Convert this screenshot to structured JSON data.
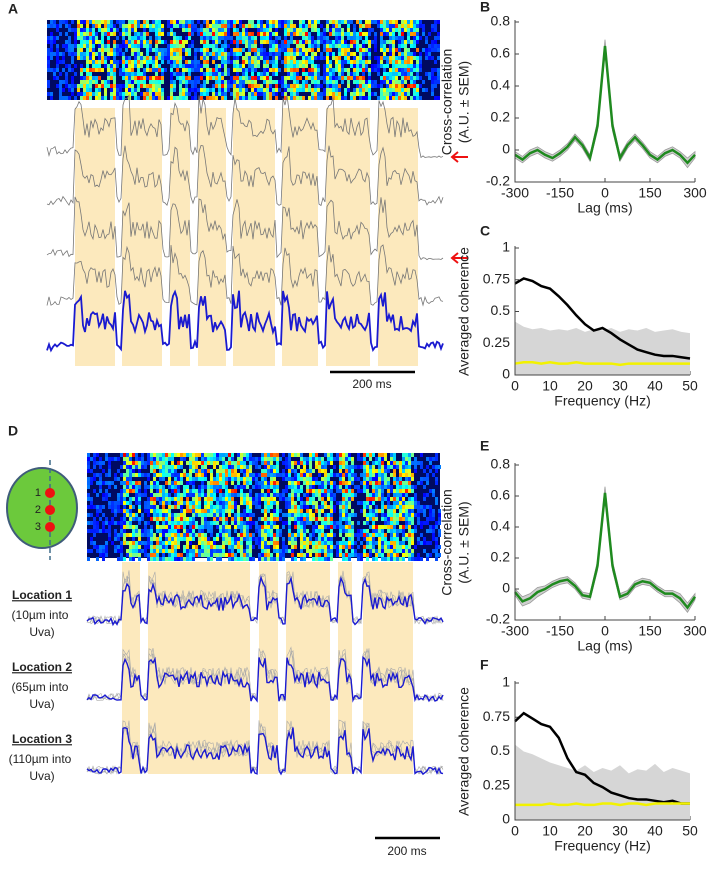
{
  "figure": {
    "panel_A": {
      "letter": "A",
      "scale_bar": "200 ms"
    },
    "panel_D": {
      "letter": "D",
      "scale_bar": "200 ms",
      "electrode_labels": [
        "1",
        "2",
        "3"
      ],
      "locations": [
        {
          "title": "Location 1",
          "detail": [
            "(10µm into",
            "Uva)"
          ]
        },
        {
          "title": "Location 2",
          "detail": [
            "(65µm into",
            "Uva)"
          ]
        },
        {
          "title": "Location 3",
          "detail": [
            "(110µm into",
            "Uva)"
          ]
        }
      ]
    }
  },
  "chart_data": [
    {
      "type": "line",
      "letter": "B",
      "ylabel": [
        "Cross-correlation",
        "(A.U. ± SEM)"
      ],
      "xlabel": "Lag (ms)",
      "x": [
        -300,
        -275,
        -250,
        -225,
        -200,
        -175,
        -150,
        -125,
        -100,
        -75,
        -50,
        -25,
        0,
        25,
        50,
        75,
        100,
        125,
        150,
        175,
        200,
        225,
        250,
        275,
        300
      ],
      "xlim": [
        -300,
        300
      ],
      "xticks": [
        -300,
        -150,
        0,
        150,
        300
      ],
      "ylim": [
        -0.2,
        0.8
      ],
      "yticks": [
        -0.2,
        0,
        0.2,
        0.4,
        0.6,
        0.8
      ],
      "series": [
        {
          "color": "#1f8a1f",
          "sem_color": "#9a9a9a",
          "values": [
            -0.03,
            -0.06,
            -0.02,
            0.0,
            -0.03,
            -0.05,
            -0.02,
            0.02,
            0.08,
            0.03,
            -0.05,
            0.15,
            0.65,
            0.15,
            -0.05,
            0.03,
            0.08,
            0.03,
            -0.03,
            -0.06,
            -0.02,
            0.0,
            -0.03,
            -0.08,
            -0.03
          ],
          "sem": [
            0.02,
            0.02,
            0.02,
            0.02,
            0.02,
            0.02,
            0.02,
            0.02,
            0.02,
            0.02,
            0.02,
            0.03,
            0.04,
            0.03,
            0.02,
            0.02,
            0.02,
            0.02,
            0.02,
            0.02,
            0.02,
            0.02,
            0.02,
            0.03,
            0.02
          ]
        }
      ]
    },
    {
      "type": "line",
      "letter": "C",
      "ylabel": [
        "Averaged coherence"
      ],
      "xlabel": "Frequency (Hz)",
      "x": [
        0,
        2.5,
        5,
        7.5,
        10,
        12.5,
        15,
        17.5,
        20,
        22.5,
        25,
        27.5,
        30,
        32.5,
        35,
        37.5,
        40,
        42.5,
        45,
        47.5,
        50
      ],
      "xlim": [
        0,
        50
      ],
      "xticks": [
        0,
        10,
        20,
        30,
        40,
        50
      ],
      "ylim": [
        0,
        1
      ],
      "yticks": [
        0,
        0.25,
        0.5,
        0.75,
        1
      ],
      "series": [
        {
          "kind": "area",
          "color": "#d6d6d6",
          "values": [
            0.42,
            0.38,
            0.36,
            0.37,
            0.35,
            0.36,
            0.35,
            0.37,
            0.34,
            0.36,
            0.35,
            0.37,
            0.34,
            0.36,
            0.35,
            0.37,
            0.34,
            0.35,
            0.36,
            0.34,
            0.33
          ]
        },
        {
          "color": "#000000",
          "values": [
            0.72,
            0.76,
            0.74,
            0.7,
            0.68,
            0.62,
            0.55,
            0.47,
            0.4,
            0.35,
            0.37,
            0.33,
            0.28,
            0.24,
            0.2,
            0.18,
            0.16,
            0.15,
            0.15,
            0.14,
            0.13
          ]
        },
        {
          "color": "#f2f200",
          "values": [
            0.09,
            0.1,
            0.1,
            0.09,
            0.1,
            0.09,
            0.09,
            0.1,
            0.09,
            0.09,
            0.09,
            0.09,
            0.08,
            0.09,
            0.09,
            0.09,
            0.09,
            0.09,
            0.09,
            0.09,
            0.09
          ]
        }
      ]
    },
    {
      "type": "line",
      "letter": "E",
      "ylabel": [
        "Cross-correlation",
        "(A.U. ± SEM)"
      ],
      "xlabel": "Lag (ms)",
      "x": [
        -300,
        -275,
        -250,
        -225,
        -200,
        -175,
        -150,
        -125,
        -100,
        -75,
        -50,
        -25,
        0,
        25,
        50,
        75,
        100,
        125,
        150,
        175,
        200,
        225,
        250,
        275,
        300
      ],
      "xlim": [
        -300,
        300
      ],
      "xticks": [
        -300,
        -150,
        0,
        150,
        300
      ],
      "ylim": [
        -0.2,
        0.8
      ],
      "yticks": [
        -0.2,
        0,
        0.2,
        0.4,
        0.6,
        0.8
      ],
      "series": [
        {
          "color": "#1f8a1f",
          "sem_color": "#9a9a9a",
          "values": [
            -0.02,
            -0.08,
            -0.06,
            -0.02,
            0.0,
            0.03,
            0.05,
            0.06,
            0.02,
            -0.04,
            -0.05,
            0.15,
            0.62,
            0.15,
            -0.05,
            -0.03,
            0.03,
            0.05,
            0.04,
            0.0,
            -0.03,
            -0.03,
            -0.06,
            -0.12,
            -0.05
          ],
          "sem": [
            0.02,
            0.03,
            0.03,
            0.03,
            0.02,
            0.02,
            0.02,
            0.02,
            0.02,
            0.02,
            0.02,
            0.03,
            0.04,
            0.03,
            0.02,
            0.02,
            0.02,
            0.02,
            0.02,
            0.02,
            0.02,
            0.02,
            0.03,
            0.03,
            0.02
          ]
        }
      ]
    },
    {
      "type": "line",
      "letter": "F",
      "ylabel": [
        "Averaged coherence"
      ],
      "xlabel": "Frequency (Hz)",
      "x": [
        0,
        2.5,
        5,
        7.5,
        10,
        12.5,
        15,
        17.5,
        20,
        22.5,
        25,
        27.5,
        30,
        32.5,
        35,
        37.5,
        40,
        42.5,
        45,
        47.5,
        50
      ],
      "xlim": [
        0,
        50
      ],
      "xticks": [
        0,
        10,
        20,
        30,
        40,
        50
      ],
      "ylim": [
        0,
        1
      ],
      "yticks": [
        0,
        0.25,
        0.5,
        0.75,
        1
      ],
      "series": [
        {
          "kind": "area",
          "color": "#d6d6d6",
          "values": [
            0.55,
            0.5,
            0.48,
            0.45,
            0.42,
            0.4,
            0.38,
            0.36,
            0.4,
            0.35,
            0.38,
            0.36,
            0.4,
            0.34,
            0.37,
            0.36,
            0.41,
            0.35,
            0.38,
            0.36,
            0.34
          ]
        },
        {
          "color": "#000000",
          "values": [
            0.72,
            0.78,
            0.74,
            0.7,
            0.68,
            0.6,
            0.45,
            0.35,
            0.33,
            0.27,
            0.24,
            0.2,
            0.18,
            0.16,
            0.15,
            0.15,
            0.14,
            0.13,
            0.14,
            0.12,
            0.12
          ]
        },
        {
          "color": "#f2f200",
          "values": [
            0.11,
            0.11,
            0.11,
            0.11,
            0.12,
            0.11,
            0.11,
            0.12,
            0.11,
            0.11,
            0.12,
            0.12,
            0.11,
            0.12,
            0.12,
            0.11,
            0.12,
            0.12,
            0.12,
            0.12,
            0.12
          ]
        }
      ]
    }
  ]
}
